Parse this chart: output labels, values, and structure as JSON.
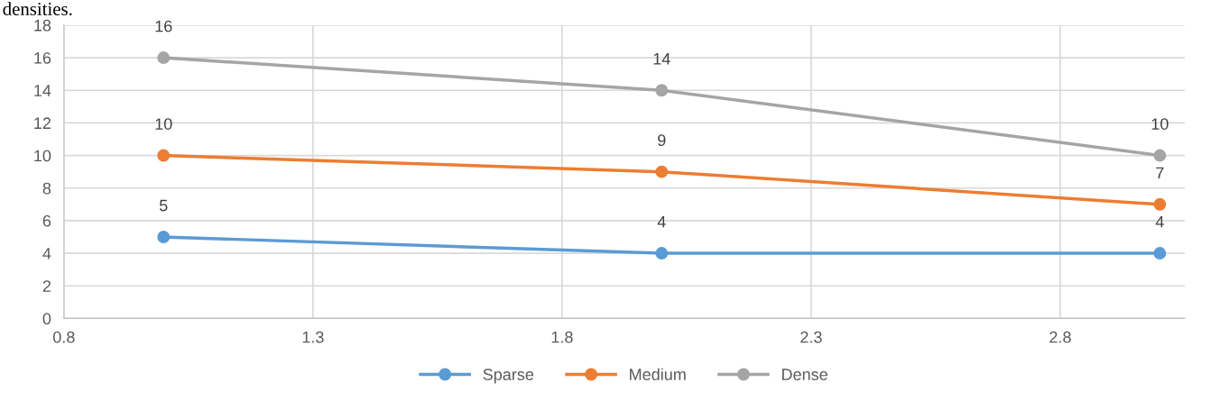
{
  "chart_data": {
    "type": "line",
    "annotations": [
      "densities."
    ],
    "x": [
      1,
      2,
      3
    ],
    "series": [
      {
        "name": "Sparse",
        "color": "#5b9bd5",
        "values": [
          5,
          4,
          4
        ]
      },
      {
        "name": "Medium",
        "color": "#ed7d31",
        "values": [
          10,
          9,
          7
        ]
      },
      {
        "name": "Dense",
        "color": "#a5a5a5",
        "values": [
          16,
          14,
          10
        ]
      }
    ],
    "xlim": [
      0.8,
      3.05
    ],
    "xticks": [
      {
        "value": 0.8,
        "label": "0.8"
      },
      {
        "value": 1.3,
        "label": "1.3"
      },
      {
        "value": 1.8,
        "label": "1.8"
      },
      {
        "value": 2.3,
        "label": "2.3"
      },
      {
        "value": 2.8,
        "label": "2.8"
      }
    ],
    "ylim": [
      0,
      18
    ],
    "yticks": [
      0,
      2,
      4,
      6,
      8,
      10,
      12,
      14,
      16,
      18
    ],
    "grid": true,
    "legend": "bottom",
    "marker": "circle",
    "line_style": "solid",
    "data_labels": true
  }
}
